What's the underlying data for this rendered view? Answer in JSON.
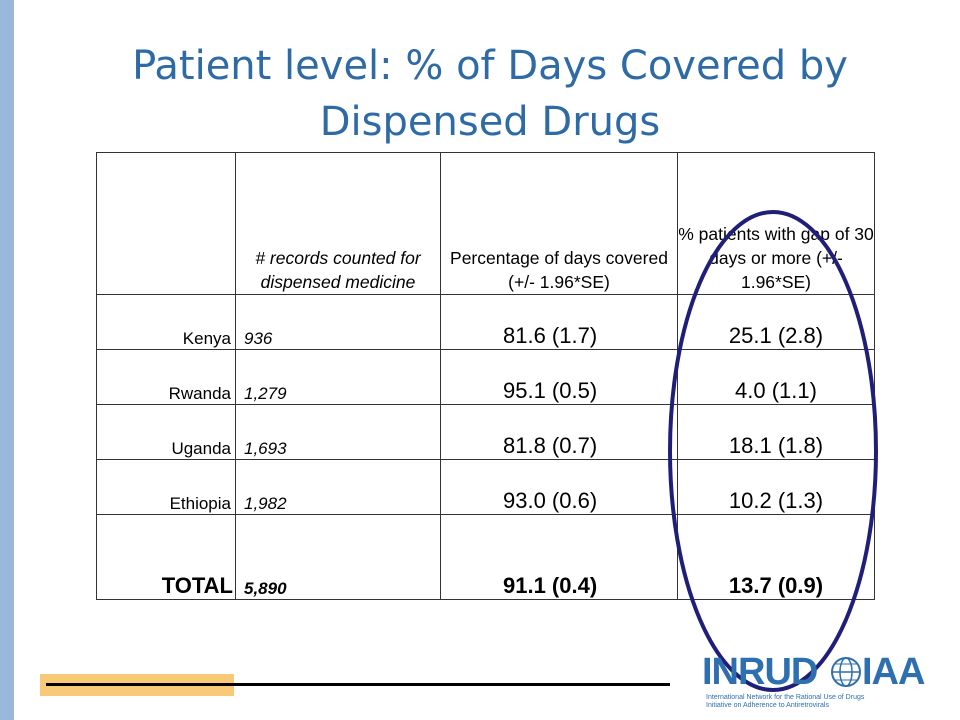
{
  "slide": {
    "title_line1": "Patient level: % of Days Covered by",
    "title_line2": "Dispensed Drugs"
  },
  "table": {
    "headers": {
      "col0": "",
      "col1": "# records counted for dispensed medicine",
      "col2": "Percentage of days covered (+/- 1.96*SE)",
      "col3": "% patients with gap of 30 days or more (+/- 1.96*SE)"
    },
    "rows": [
      {
        "country": "Kenya",
        "records": "936",
        "pct_days_covered": "81.6 (1.7)",
        "pct_gap_30": "25.1 (2.8)"
      },
      {
        "country": "Rwanda",
        "records": "1,279",
        "pct_days_covered": "95.1 (0.5)",
        "pct_gap_30": "4.0 (1.1)"
      },
      {
        "country": "Uganda",
        "records": "1,693",
        "pct_days_covered": "81.8 (0.7)",
        "pct_gap_30": "18.1 (1.8)"
      },
      {
        "country": "Ethiopia",
        "records": "1,982",
        "pct_days_covered": "93.0 (0.6)",
        "pct_gap_30": "10.2 (1.3)"
      }
    ],
    "total": {
      "country": "TOTAL",
      "records": "5,890",
      "pct_days_covered": "91.1 (0.4)",
      "pct_gap_30": "13.7 (0.9)"
    }
  },
  "logo": {
    "word_left": "INRUD",
    "word_right": "IAA",
    "subtitle_line1": "International Network for the Rational Use of Drugs",
    "subtitle_line2": "Initiative on Adherence to Antiretrovirals"
  },
  "colors": {
    "title": "#2e6aa6",
    "left_bar": "#9ab8dc",
    "highlight_ellipse": "#1f1f7a",
    "footer_accent": "#f8c977"
  }
}
